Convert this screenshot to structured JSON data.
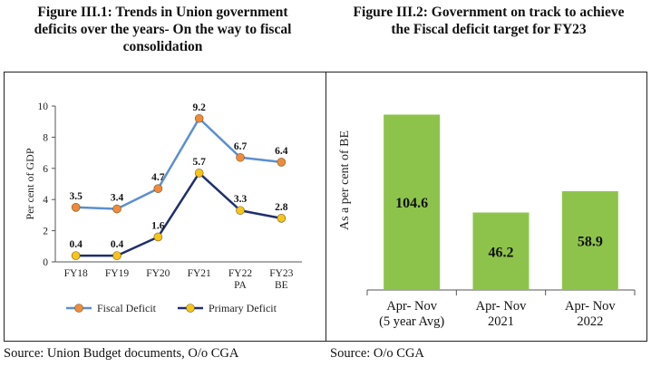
{
  "figure1": {
    "title_lines": [
      "Figure III.1: Trends in Union government",
      "deficits over the years- On the way to fiscal",
      "consolidation"
    ],
    "source": "Source: Union Budget documents, O/o CGA"
  },
  "figure2": {
    "title_lines": [
      "Figure III.2: Government on track to achieve",
      "the Fiscal deficit target for FY23"
    ],
    "source": "Source: O/o CGA"
  },
  "chart_data": [
    {
      "type": "line",
      "categories": [
        [
          "FY18"
        ],
        [
          "FY19"
        ],
        [
          "FY20"
        ],
        [
          "FY21"
        ],
        [
          "FY22",
          "PA"
        ],
        [
          "FY23",
          "BE"
        ]
      ],
      "series": [
        {
          "name": "Fiscal Deficit",
          "values": [
            3.5,
            3.4,
            4.7,
            9.2,
            6.7,
            6.4
          ],
          "labels": [
            "3.5",
            "3.4",
            "4.7",
            "9.2",
            "6.7",
            "6.4"
          ],
          "color": "#5b8fd0",
          "marker_color": "#f08a3c"
        },
        {
          "name": "Primary Deficit",
          "values": [
            0.4,
            0.4,
            1.6,
            5.7,
            3.3,
            2.8
          ],
          "labels": [
            "0.4",
            "0.4",
            "1.6",
            "5.7",
            "3.3",
            "2.8"
          ],
          "color": "#1f2e6e",
          "marker_color": "#f5c518"
        }
      ],
      "ylabel": "Per cent of GDP",
      "ylim": [
        0,
        10
      ],
      "yticks": [
        "0",
        "2",
        "4",
        "6",
        "8",
        "10"
      ],
      "grid": false,
      "legend": "bottom"
    },
    {
      "type": "bar",
      "categories": [
        [
          "Apr- Nov",
          "(5 year Avg)"
        ],
        [
          "Apr- Nov",
          "2021"
        ],
        [
          "Apr- Nov",
          "2022"
        ]
      ],
      "values": [
        104.6,
        46.2,
        58.9
      ],
      "labels": [
        "104.6",
        "46.2",
        "58.9"
      ],
      "ylabel": "As a per cent of BE",
      "ylim": [
        0,
        120
      ],
      "bar_color": "#8dc34b",
      "grid": false
    }
  ]
}
